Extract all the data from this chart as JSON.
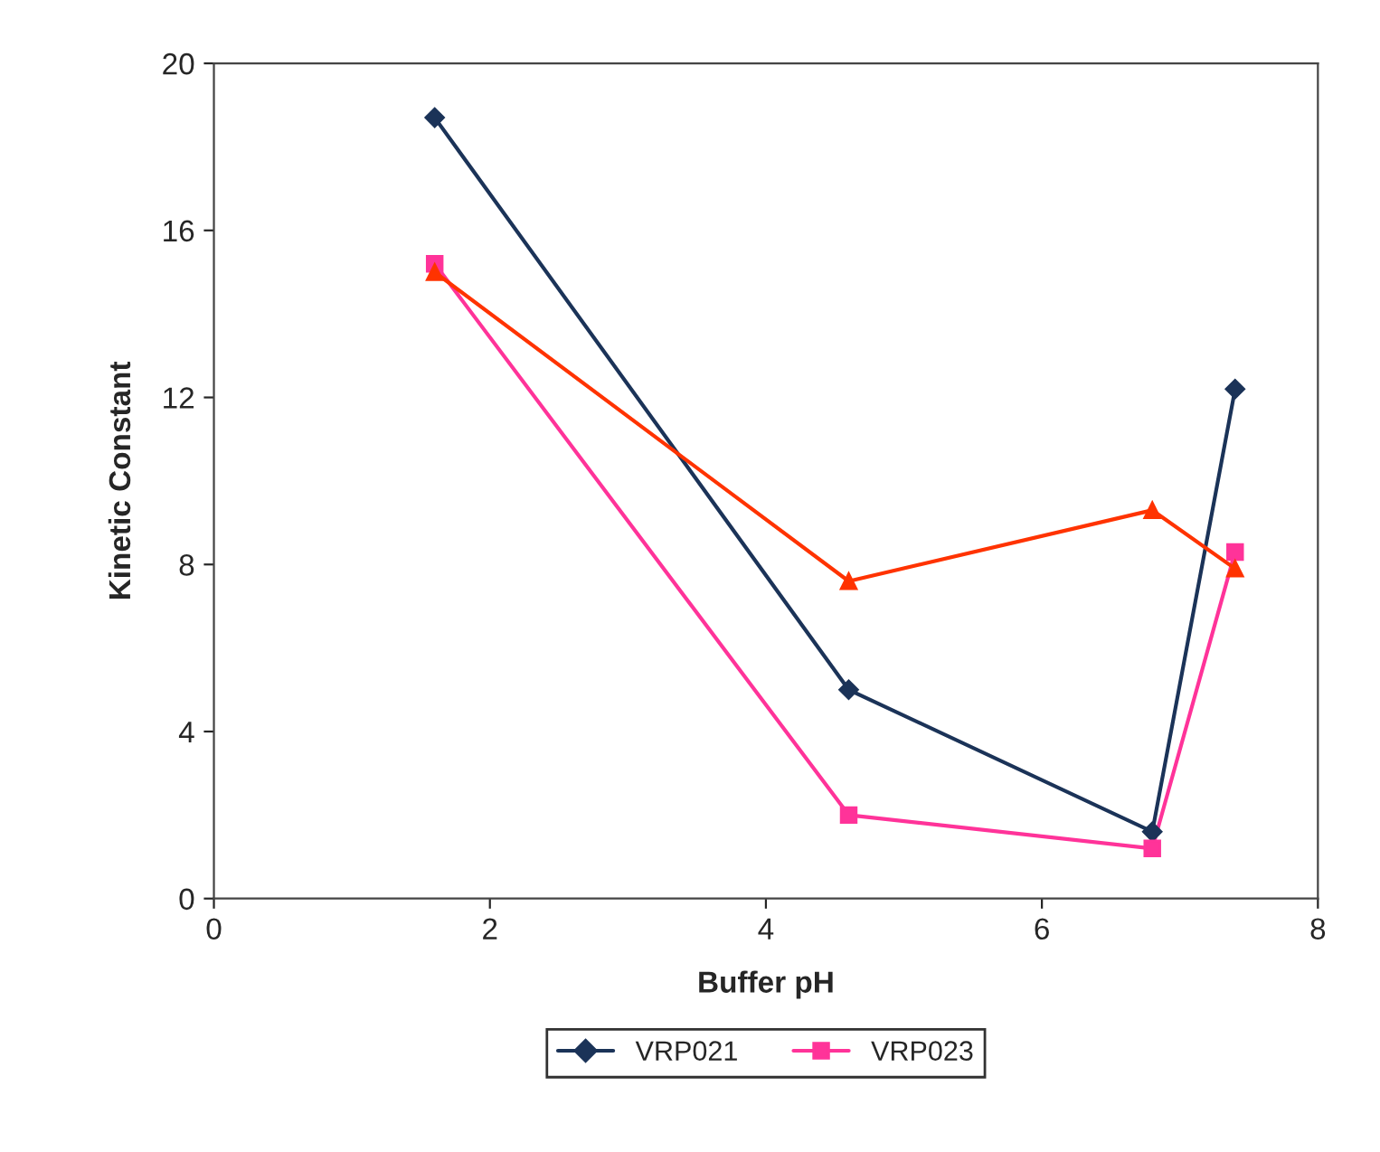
{
  "chart_data": {
    "type": "line",
    "xlabel": "Buffer pH",
    "ylabel": "Kinetic Constant",
    "x": [
      1.6,
      4.6,
      6.8,
      7.4
    ],
    "series": [
      {
        "name": "VRP021",
        "color": "#1b3358",
        "marker": "diamond",
        "values": [
          18.7,
          5.0,
          1.6,
          12.2
        ]
      },
      {
        "name": "VRP023",
        "color": "#ff3399",
        "marker": "square",
        "values": [
          15.2,
          2.0,
          1.2,
          8.3
        ]
      },
      {
        "color": "#ff3300",
        "marker": "triangle",
        "values": [
          15.0,
          7.6,
          9.3,
          7.9
        ]
      }
    ],
    "xlim": [
      0,
      8
    ],
    "xticks": [
      0,
      2,
      4,
      6,
      8
    ],
    "ylim": [
      0,
      20
    ],
    "yticks": [
      0,
      4,
      8,
      12,
      16,
      20
    ],
    "grid": false,
    "legend": "bottom",
    "line_style": "solid"
  }
}
